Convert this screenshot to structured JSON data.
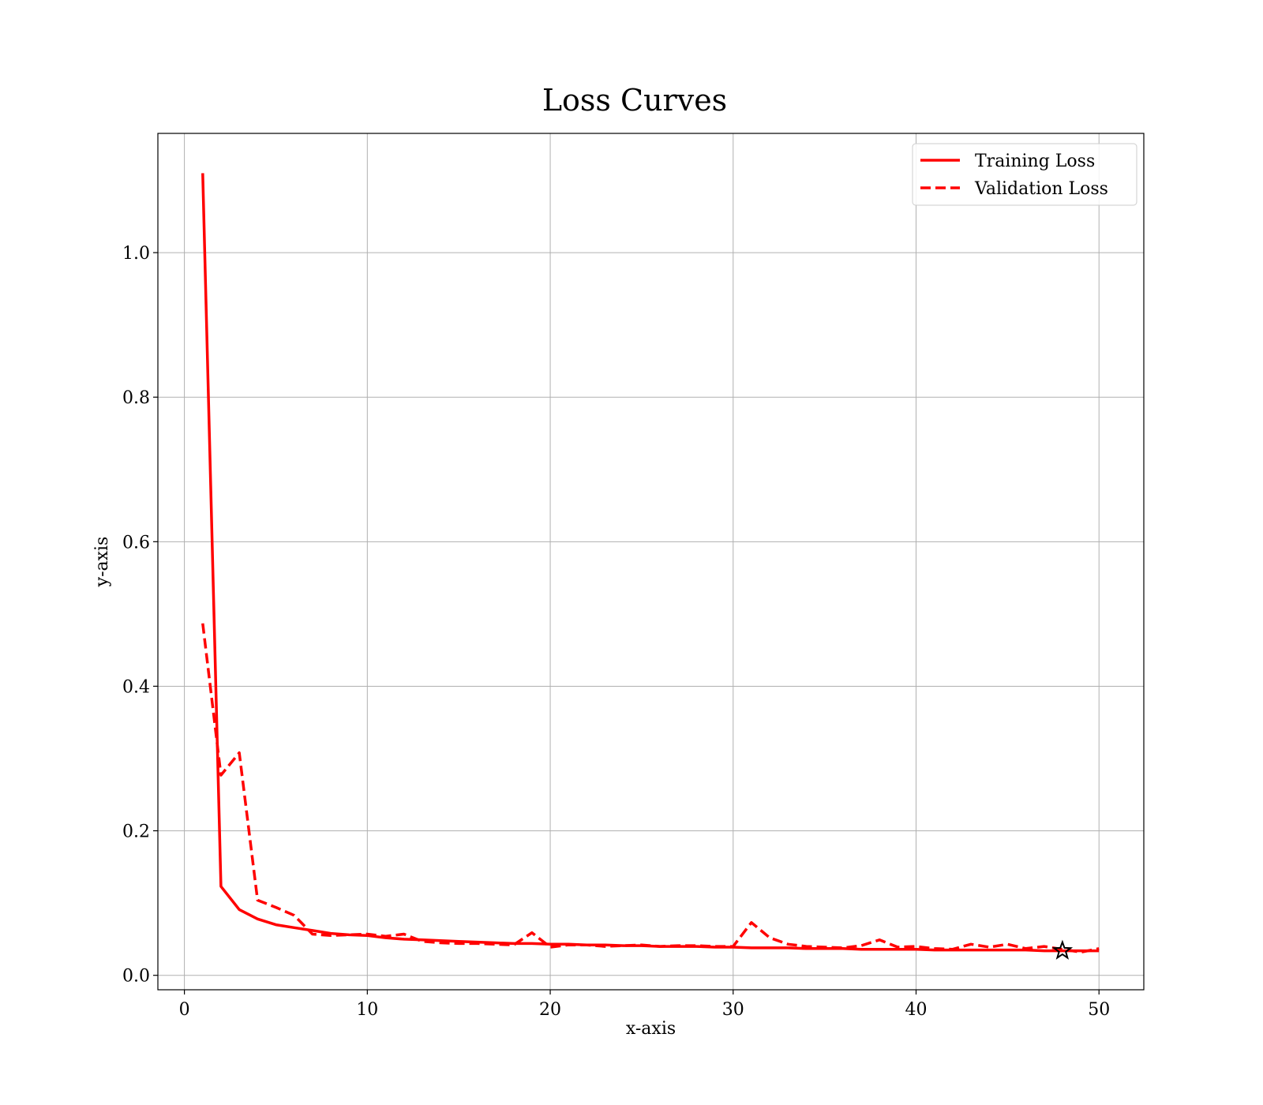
{
  "chart_data": {
    "type": "line",
    "title": "Loss Curves",
    "xlabel": "x-axis",
    "ylabel": "y-axis",
    "xlim": [
      -1.45,
      52.45
    ],
    "ylim": [
      -0.02,
      1.165
    ],
    "xticks": [
      0,
      10,
      20,
      30,
      40,
      50
    ],
    "xtick_labels": [
      "0",
      "10",
      "20",
      "30",
      "40",
      "50"
    ],
    "yticks": [
      0.0,
      0.2,
      0.4,
      0.6,
      0.8,
      1.0
    ],
    "ytick_labels": [
      "0.0",
      "0.2",
      "0.4",
      "0.6",
      "0.8",
      "1.0"
    ],
    "grid": true,
    "legend_position": "top-right",
    "colors": {
      "series": "#ff0000",
      "marker": "#000000"
    },
    "x": [
      1,
      2,
      3,
      4,
      5,
      6,
      7,
      8,
      9,
      10,
      11,
      12,
      13,
      14,
      15,
      16,
      17,
      18,
      19,
      20,
      21,
      22,
      23,
      24,
      25,
      26,
      27,
      28,
      29,
      30,
      31,
      32,
      33,
      34,
      35,
      36,
      37,
      38,
      39,
      40,
      41,
      42,
      43,
      44,
      45,
      46,
      47,
      48,
      49,
      50
    ],
    "series": [
      {
        "name": "Training Loss",
        "style": "solid",
        "values": [
          1.11,
          0.123,
          0.091,
          0.078,
          0.07,
          0.066,
          0.062,
          0.058,
          0.056,
          0.055,
          0.052,
          0.05,
          0.049,
          0.048,
          0.047,
          0.046,
          0.045,
          0.044,
          0.044,
          0.043,
          0.043,
          0.042,
          0.042,
          0.041,
          0.041,
          0.04,
          0.04,
          0.04,
          0.039,
          0.039,
          0.038,
          0.038,
          0.038,
          0.037,
          0.037,
          0.037,
          0.036,
          0.036,
          0.036,
          0.036,
          0.035,
          0.035,
          0.035,
          0.035,
          0.035,
          0.035,
          0.034,
          0.034,
          0.034,
          0.034
        ]
      },
      {
        "name": "Validation Loss",
        "style": "dashed",
        "values": [
          0.487,
          0.277,
          0.308,
          0.104,
          0.094,
          0.083,
          0.057,
          0.055,
          0.056,
          0.057,
          0.054,
          0.057,
          0.047,
          0.045,
          0.044,
          0.044,
          0.043,
          0.042,
          0.059,
          0.039,
          0.042,
          0.042,
          0.04,
          0.041,
          0.042,
          0.04,
          0.041,
          0.041,
          0.04,
          0.04,
          0.073,
          0.052,
          0.043,
          0.04,
          0.039,
          0.038,
          0.041,
          0.049,
          0.039,
          0.04,
          0.037,
          0.036,
          0.043,
          0.039,
          0.043,
          0.037,
          0.04,
          0.036,
          0.032,
          0.037
        ]
      }
    ],
    "annotations": [
      {
        "type": "marker",
        "shape": "star",
        "x": 48,
        "y": 0.034
      }
    ]
  }
}
